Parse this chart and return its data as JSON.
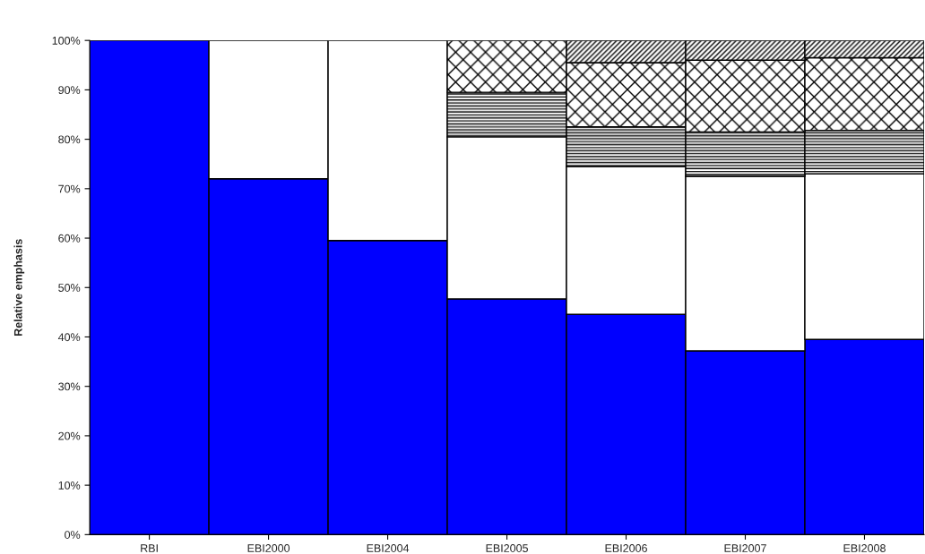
{
  "chart_data": {
    "type": "bar",
    "stacked": true,
    "ylabel": "Relative emphasis",
    "categories": [
      "RBI",
      "EBI2000",
      "EBI2004",
      "EBI2005",
      "EBI2006",
      "EBI2007",
      "EBI2008"
    ],
    "series": [
      {
        "color": "#0000ff",
        "values": [
          100,
          72,
          59.5,
          47.7,
          44.6,
          37.2,
          39.5
        ]
      },
      {
        "color": "#ffffff",
        "values": [
          null,
          28,
          40.5,
          32.8,
          29.9,
          35.3,
          33.5
        ]
      },
      {
        "color": "#000000",
        "values": [
          null,
          null,
          null,
          9.0,
          8.0,
          9.0,
          8.8
        ]
      },
      {
        "color": "#000000",
        "values": [
          null,
          null,
          null,
          10.5,
          13.0,
          14.5,
          14.7
        ]
      },
      {
        "color": "#000000",
        "values": [
          null,
          null,
          null,
          null,
          4.5,
          4.0,
          3.5
        ]
      }
    ],
    "ylim": [
      0,
      100
    ],
    "yticks": [
      {
        "value": 0,
        "label": "0%"
      },
      {
        "value": 10,
        "label": "10%"
      },
      {
        "value": 20,
        "label": "20%"
      },
      {
        "value": 30,
        "label": "30%"
      },
      {
        "value": 40,
        "label": "40%"
      },
      {
        "value": 50,
        "label": "50%"
      },
      {
        "value": 60,
        "label": "60%"
      },
      {
        "value": 70,
        "label": "70%"
      },
      {
        "value": 80,
        "label": "80%"
      },
      {
        "value": 90,
        "label": "90%"
      },
      {
        "value": 100,
        "label": "100%"
      }
    ],
    "legend": false
  }
}
